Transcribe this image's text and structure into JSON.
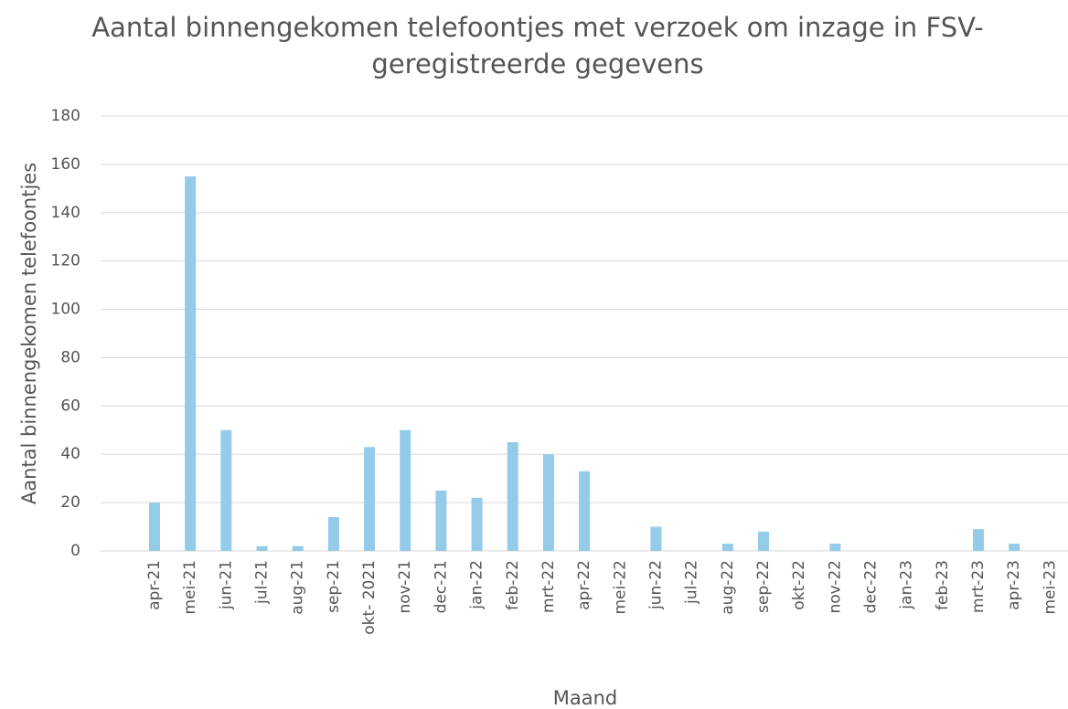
{
  "chart_data": {
    "type": "bar",
    "title": "Aantal binnengekomen telefoontjes met verzoek om inzage in FSV-geregistreerde gegevens",
    "x_label": "Maand",
    "y_label": "Aantal binnengekomen telefoontjes",
    "categories": [
      "apr-21",
      "mei-21",
      "jun-21",
      "jul-21",
      "aug-21",
      "sep-21",
      "okt- 2021",
      "nov-21",
      "dec-21",
      "jan-22",
      "feb-22",
      "mrt-22",
      "apr-22",
      "mei-22",
      "jun-22",
      "jul-22",
      "aug-22",
      "sep-22",
      "okt-22",
      "nov-22",
      "dec-22",
      "jan-23",
      "feb-23",
      "mrt-23",
      "apr-23",
      "mei-23"
    ],
    "values": [
      20,
      155,
      50,
      2,
      2,
      14,
      43,
      50,
      25,
      22,
      45,
      40,
      33,
      0,
      10,
      0,
      3,
      8,
      0,
      3,
      0,
      0,
      0,
      9,
      3,
      0
    ],
    "color": "#93cbe8",
    "ylim": [
      0,
      180
    ],
    "yticks": [
      0,
      20,
      40,
      60,
      80,
      100,
      120,
      140,
      160,
      180
    ],
    "grid": true
  }
}
